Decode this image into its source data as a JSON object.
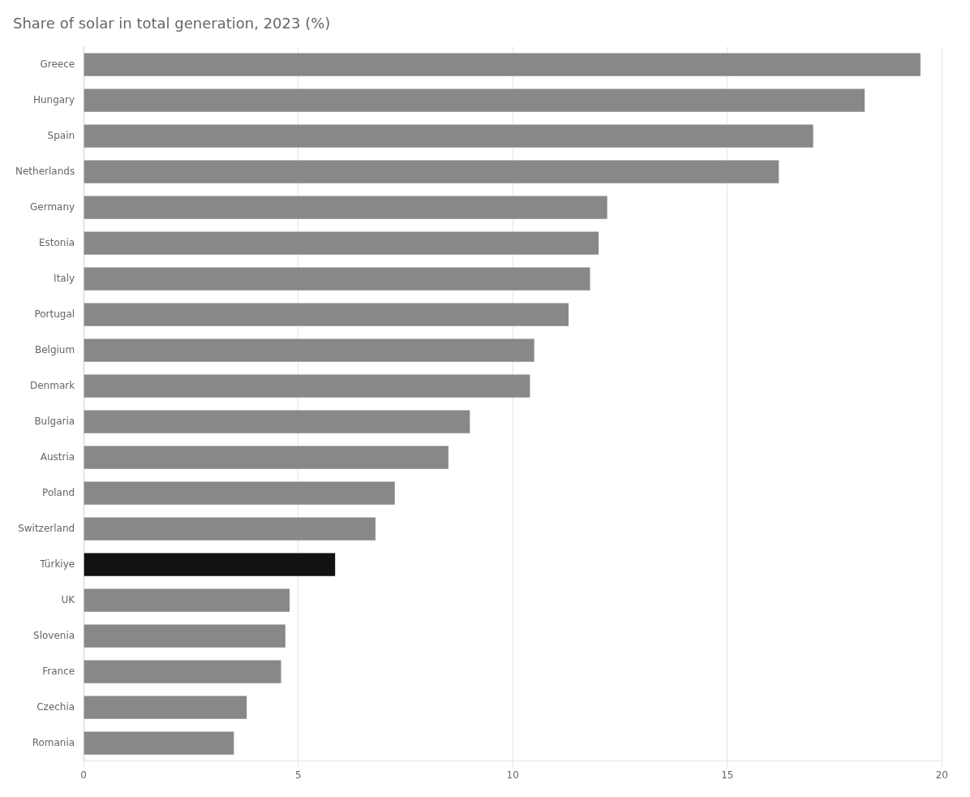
{
  "chart_data": {
    "type": "bar",
    "orientation": "horizontal",
    "title": "Share of solar in total generation, 2023 (%)",
    "categories": [
      "Greece",
      "Hungary",
      "Spain",
      "Netherlands",
      "Germany",
      "Estonia",
      "Italy",
      "Portugal",
      "Belgium",
      "Denmark",
      "Bulgaria",
      "Austria",
      "Poland",
      "Switzerland",
      "Türkiye",
      "UK",
      "Slovenia",
      "France",
      "Czechia",
      "Romania"
    ],
    "values": [
      19.5,
      18.2,
      17.0,
      16.2,
      12.2,
      12.0,
      11.8,
      11.3,
      10.5,
      10.4,
      9.0,
      8.5,
      7.25,
      6.8,
      5.86,
      4.8,
      4.7,
      4.6,
      3.8,
      3.5
    ],
    "colors": [
      "#888888",
      "#888888",
      "#888888",
      "#888888",
      "#888888",
      "#888888",
      "#888888",
      "#888888",
      "#888888",
      "#888888",
      "#888888",
      "#888888",
      "#888888",
      "#888888",
      "#111111",
      "#888888",
      "#888888",
      "#888888",
      "#888888",
      "#888888"
    ],
    "xlim": [
      0,
      20
    ],
    "xticks": [
      0,
      5,
      10,
      15,
      20
    ],
    "grid": true
  }
}
